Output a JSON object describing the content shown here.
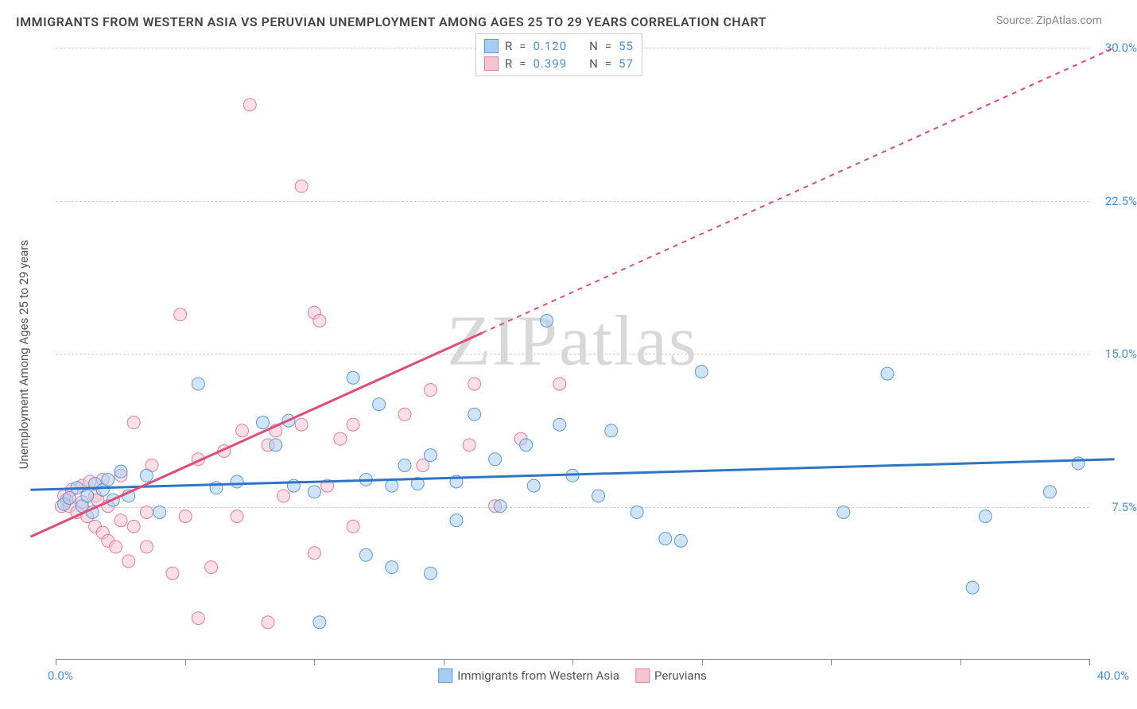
{
  "title": "IMMIGRANTS FROM WESTERN ASIA VS PERUVIAN UNEMPLOYMENT AMONG AGES 25 TO 29 YEARS CORRELATION CHART",
  "source": "Source: ZipAtlas.com",
  "watermark": "ZIPatlas",
  "chart": {
    "type": "scatter",
    "xlim": [
      0,
      40
    ],
    "ylim": [
      0,
      30
    ],
    "x_origin_label": "0.0%",
    "x_max_label": "40.0%",
    "y_tick_labels": [
      "7.5%",
      "15.0%",
      "22.5%",
      "30.0%"
    ],
    "y_tick_values": [
      7.5,
      15.0,
      22.5,
      30.0
    ],
    "x_tick_values": [
      0,
      5,
      10,
      15,
      20,
      25,
      30,
      35,
      40
    ],
    "y_axis_title": "Unemployment Among Ages 25 to 29 years",
    "background_color": "#ffffff",
    "grid_color": "#d0d0d0",
    "axis_color": "#888888",
    "marker_radius": 8,
    "marker_opacity": 0.55,
    "line_width": 3,
    "series": [
      {
        "name": "Immigrants from Western Asia",
        "fill_color": "#a8cdf0",
        "stroke_color": "#5b9bd5",
        "line_color": "#2e75c6",
        "R": "0.120",
        "N": "55",
        "regression": {
          "x1": -1,
          "y1": 8.3,
          "x2": 41,
          "y2": 9.8,
          "dash_from_x": null
        },
        "points": [
          [
            0.3,
            7.6
          ],
          [
            0.5,
            7.9
          ],
          [
            0.8,
            8.4
          ],
          [
            1.0,
            7.5
          ],
          [
            1.2,
            8.0
          ],
          [
            1.5,
            8.6
          ],
          [
            1.4,
            7.2
          ],
          [
            1.8,
            8.3
          ],
          [
            2.0,
            8.8
          ],
          [
            2.2,
            7.8
          ],
          [
            2.5,
            9.2
          ],
          [
            2.8,
            8.0
          ],
          [
            3.5,
            9.0
          ],
          [
            4.0,
            7.2
          ],
          [
            5.5,
            13.5
          ],
          [
            6.2,
            8.4
          ],
          [
            7.0,
            8.7
          ],
          [
            8.0,
            11.6
          ],
          [
            8.5,
            10.5
          ],
          [
            9.0,
            11.7
          ],
          [
            9.2,
            8.5
          ],
          [
            10.0,
            8.2
          ],
          [
            10.2,
            1.8
          ],
          [
            11.5,
            13.8
          ],
          [
            12.0,
            8.8
          ],
          [
            12.0,
            5.1
          ],
          [
            12.5,
            12.5
          ],
          [
            13.0,
            8.5
          ],
          [
            13.0,
            4.5
          ],
          [
            13.5,
            9.5
          ],
          [
            14.0,
            8.6
          ],
          [
            14.5,
            10.0
          ],
          [
            14.5,
            4.2
          ],
          [
            15.5,
            8.7
          ],
          [
            15.5,
            6.8
          ],
          [
            16.2,
            12.0
          ],
          [
            17.0,
            9.8
          ],
          [
            17.2,
            7.5
          ],
          [
            18.2,
            10.5
          ],
          [
            18.5,
            8.5
          ],
          [
            19.0,
            16.6
          ],
          [
            19.5,
            11.5
          ],
          [
            20.0,
            9.0
          ],
          [
            21.0,
            8.0
          ],
          [
            21.5,
            11.2
          ],
          [
            22.5,
            7.2
          ],
          [
            23.6,
            5.9
          ],
          [
            24.2,
            5.8
          ],
          [
            25.0,
            14.1
          ],
          [
            30.5,
            7.2
          ],
          [
            32.2,
            14.0
          ],
          [
            35.5,
            3.5
          ],
          [
            36.0,
            7.0
          ],
          [
            38.5,
            8.2
          ],
          [
            39.6,
            9.6
          ]
        ]
      },
      {
        "name": "Peruvians",
        "fill_color": "#f5c4d1",
        "stroke_color": "#e87ba0",
        "line_color": "#e14b7a",
        "R": "0.399",
        "N": "57",
        "regression": {
          "x1": -1,
          "y1": 6.0,
          "x2": 41,
          "y2": 30.0,
          "dash_from_x": 16.5
        },
        "points": [
          [
            0.2,
            7.5
          ],
          [
            0.3,
            8.0
          ],
          [
            0.4,
            7.8
          ],
          [
            0.5,
            7.5
          ],
          [
            0.6,
            8.3
          ],
          [
            0.8,
            7.2
          ],
          [
            1.0,
            7.7
          ],
          [
            1.0,
            8.5
          ],
          [
            1.2,
            7.0
          ],
          [
            1.3,
            8.7
          ],
          [
            1.5,
            6.5
          ],
          [
            1.5,
            8.0
          ],
          [
            1.6,
            7.8
          ],
          [
            1.8,
            6.2
          ],
          [
            1.8,
            8.8
          ],
          [
            2.0,
            5.8
          ],
          [
            2.0,
            7.5
          ],
          [
            2.3,
            5.5
          ],
          [
            2.5,
            6.8
          ],
          [
            2.5,
            9.0
          ],
          [
            2.8,
            4.8
          ],
          [
            3.0,
            11.6
          ],
          [
            3.0,
            6.5
          ],
          [
            3.5,
            5.5
          ],
          [
            3.5,
            7.2
          ],
          [
            3.7,
            9.5
          ],
          [
            4.5,
            4.2
          ],
          [
            4.8,
            16.9
          ],
          [
            5.0,
            7.0
          ],
          [
            5.5,
            9.8
          ],
          [
            5.5,
            2.0
          ],
          [
            6.0,
            4.5
          ],
          [
            6.5,
            10.2
          ],
          [
            7.0,
            7.0
          ],
          [
            7.2,
            11.2
          ],
          [
            7.5,
            27.2
          ],
          [
            8.2,
            10.5
          ],
          [
            8.2,
            1.8
          ],
          [
            8.5,
            11.2
          ],
          [
            8.8,
            8.0
          ],
          [
            9.5,
            23.2
          ],
          [
            9.5,
            11.5
          ],
          [
            10.0,
            17.0
          ],
          [
            10.0,
            5.2
          ],
          [
            10.2,
            16.6
          ],
          [
            10.5,
            8.5
          ],
          [
            11.0,
            10.8
          ],
          [
            11.5,
            6.5
          ],
          [
            11.5,
            11.5
          ],
          [
            13.5,
            12.0
          ],
          [
            14.2,
            9.5
          ],
          [
            14.5,
            13.2
          ],
          [
            16.0,
            10.5
          ],
          [
            16.2,
            13.5
          ],
          [
            17.0,
            7.5
          ],
          [
            18.0,
            10.8
          ],
          [
            19.5,
            13.5
          ]
        ]
      }
    ]
  },
  "legend_top": [
    {
      "swatch_fill": "#a8cdf0",
      "swatch_stroke": "#5b9bd5",
      "R": "0.120",
      "N": "55"
    },
    {
      "swatch_fill": "#f5c4d1",
      "swatch_stroke": "#e87ba0",
      "R": "0.399",
      "N": "57"
    }
  ],
  "legend_bottom": [
    {
      "swatch_fill": "#a8cdf0",
      "swatch_stroke": "#5b9bd5",
      "label": "Immigrants from Western Asia"
    },
    {
      "swatch_fill": "#f5c4d1",
      "swatch_stroke": "#e87ba0",
      "label": "Peruvians"
    }
  ],
  "label_R": "R",
  "label_N": "N",
  "label_eq": "="
}
